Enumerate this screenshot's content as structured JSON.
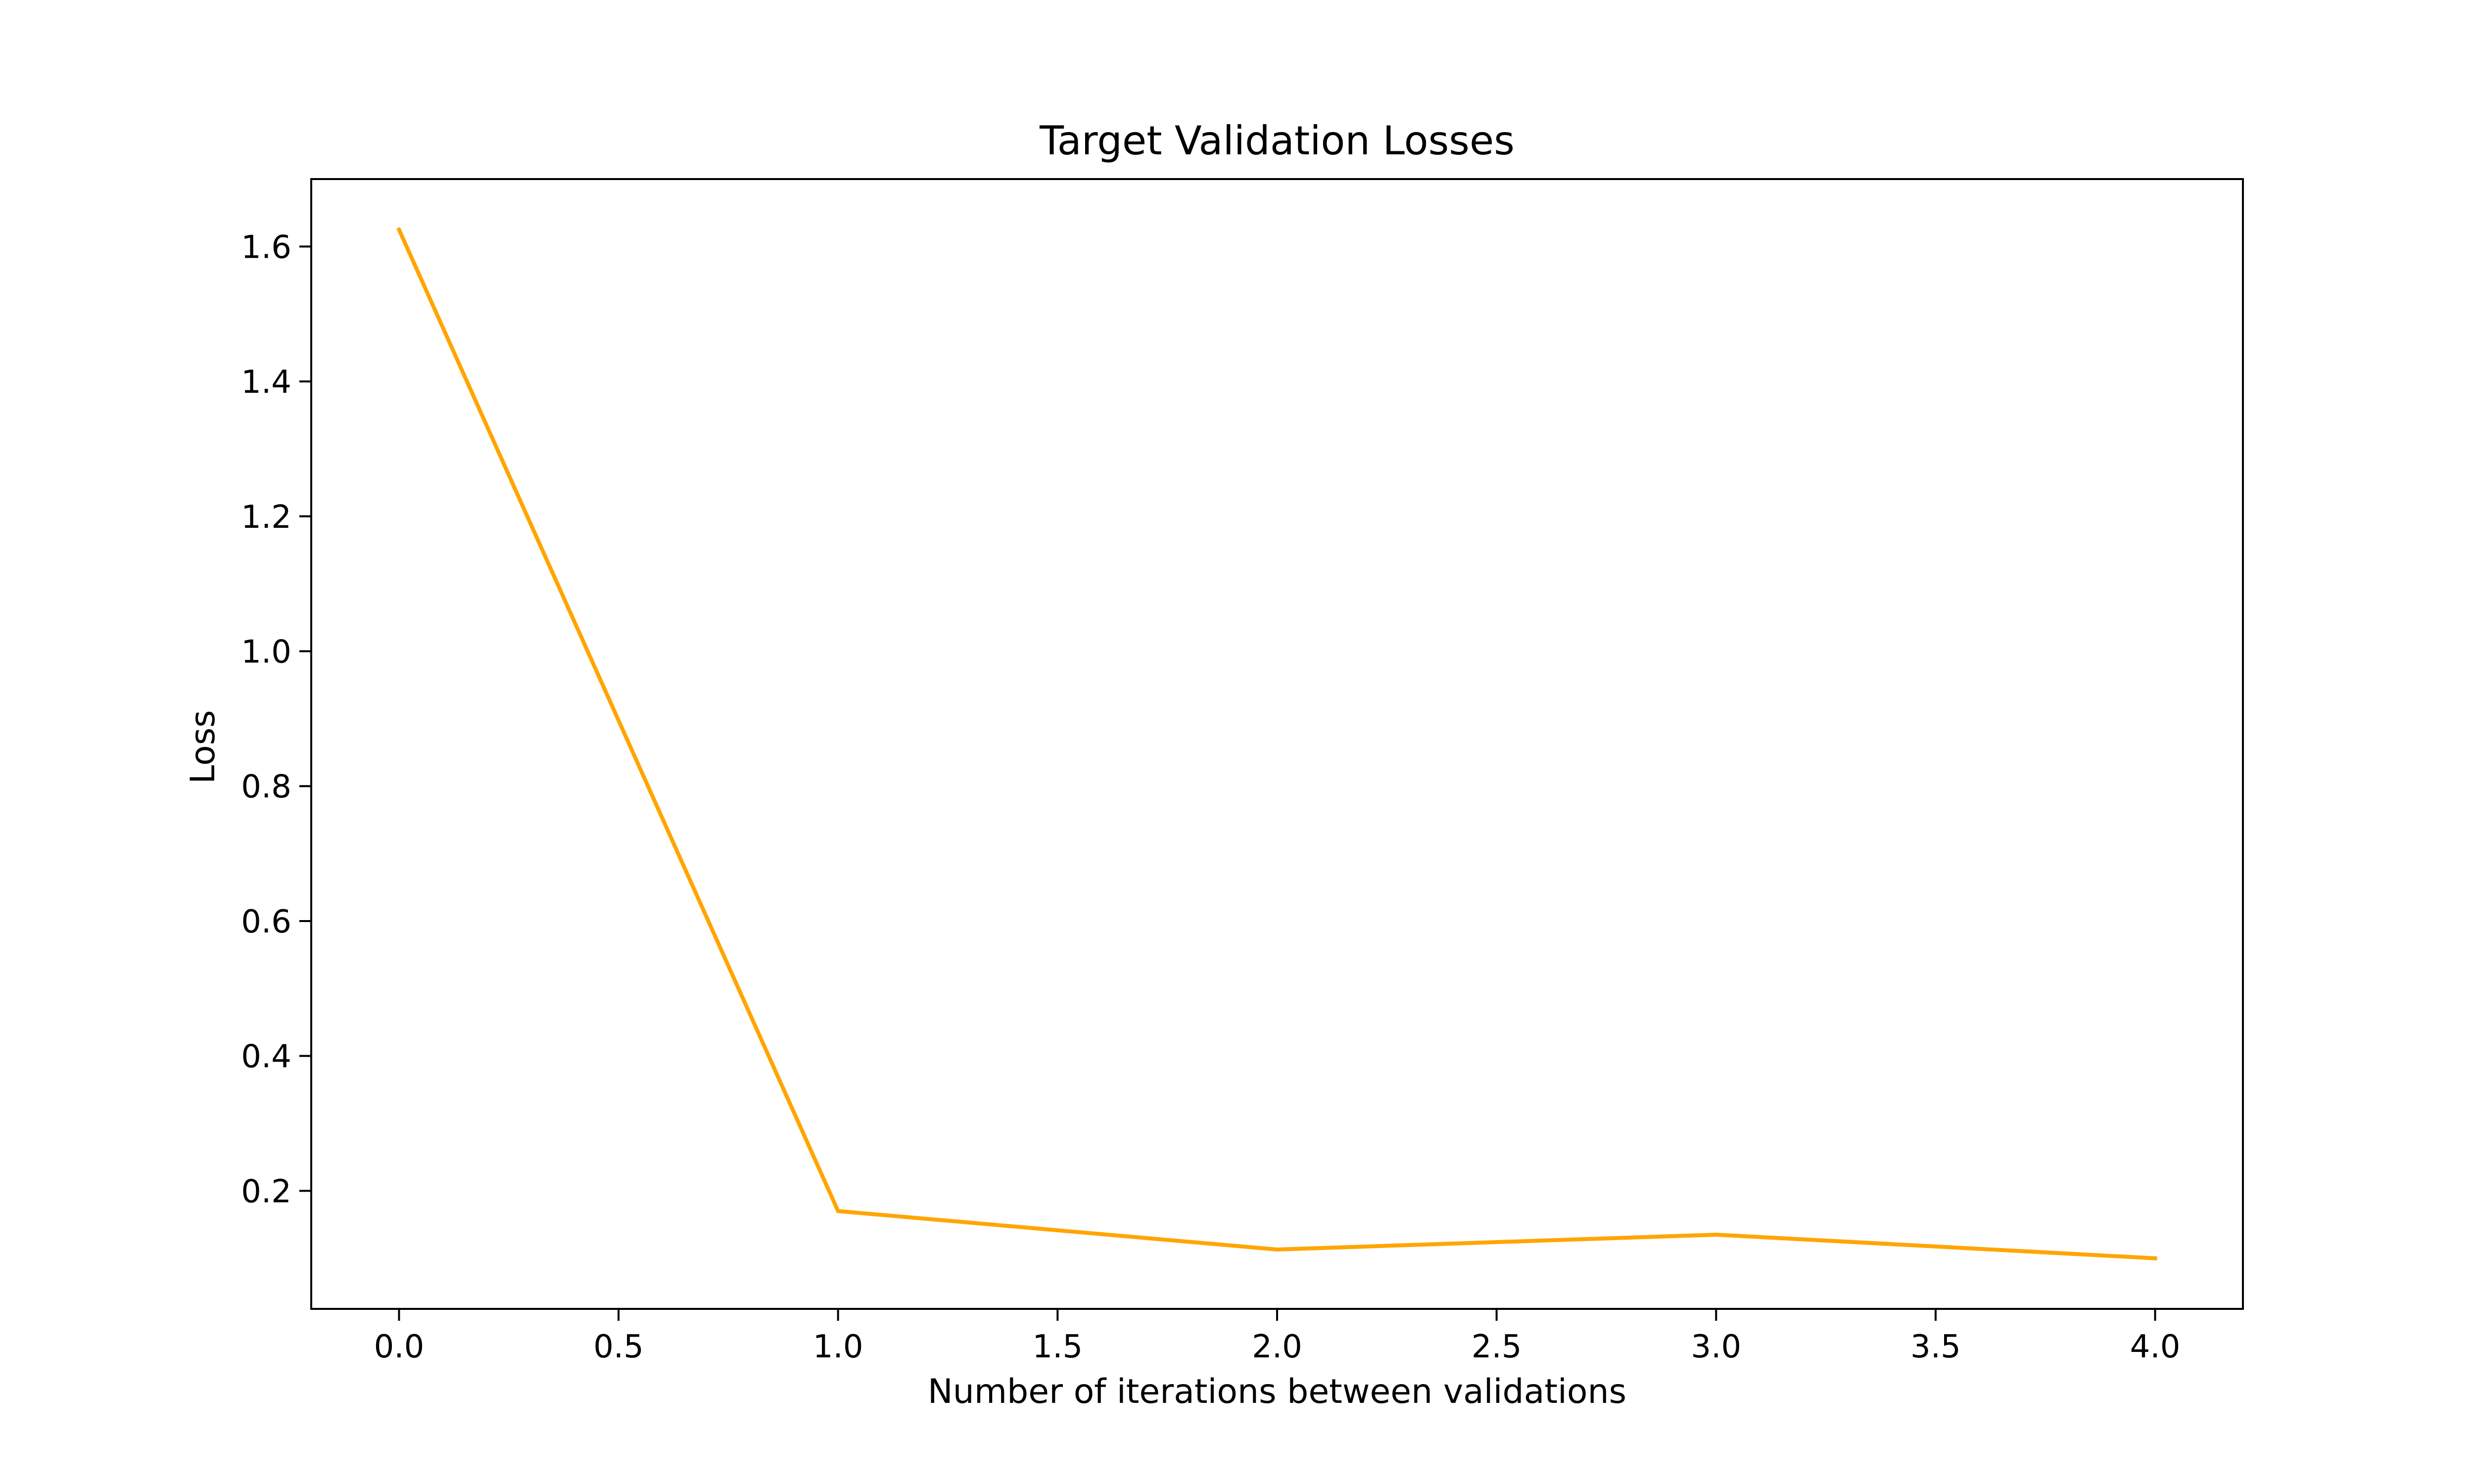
{
  "chart_data": {
    "type": "line",
    "title": "Target Validation Losses",
    "xlabel": "Number of iterations between validations",
    "ylabel": "Loss",
    "xlim": [
      -0.2,
      4.2
    ],
    "ylim": [
      0.025,
      1.7
    ],
    "xticks": [
      {
        "value": 0.0,
        "label": "0.0"
      },
      {
        "value": 0.5,
        "label": "0.5"
      },
      {
        "value": 1.0,
        "label": "1.0"
      },
      {
        "value": 1.5,
        "label": "1.5"
      },
      {
        "value": 2.0,
        "label": "2.0"
      },
      {
        "value": 2.5,
        "label": "2.5"
      },
      {
        "value": 3.0,
        "label": "3.0"
      },
      {
        "value": 3.5,
        "label": "3.5"
      },
      {
        "value": 4.0,
        "label": "4.0"
      }
    ],
    "yticks": [
      {
        "value": 0.2,
        "label": "0.2"
      },
      {
        "value": 0.4,
        "label": "0.4"
      },
      {
        "value": 0.6,
        "label": "0.6"
      },
      {
        "value": 0.8,
        "label": "0.8"
      },
      {
        "value": 1.0,
        "label": "1.0"
      },
      {
        "value": 1.2,
        "label": "1.2"
      },
      {
        "value": 1.4,
        "label": "1.4"
      },
      {
        "value": 1.6,
        "label": "1.6"
      }
    ],
    "grid": false,
    "legend": "none",
    "series": [
      {
        "color": "#FFA500",
        "x": [
          0,
          1,
          2,
          3,
          4
        ],
        "y": [
          1.625,
          0.17,
          0.113,
          0.135,
          0.1
        ]
      }
    ]
  }
}
